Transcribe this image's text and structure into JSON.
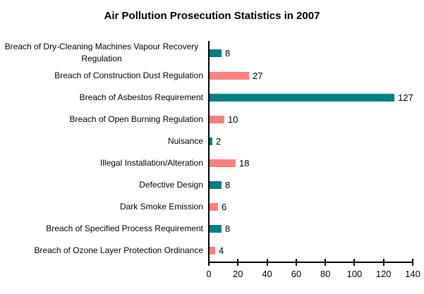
{
  "title": "Air Pollution Prosecution Statistics in 2007",
  "colors": {
    "series_teal": "#008080",
    "series_salmon": "#FF8080",
    "axis": "#000000",
    "background": "#FFFFFF",
    "text": "#000000"
  },
  "chart_data": {
    "type": "bar",
    "orientation": "horizontal",
    "title": "Air Pollution Prosecution Statistics in 2007",
    "categories": [
      "Breach of Dry-Cleaning Machines Vapour Recovery Regulation",
      "Breach of Construction Dust Regulation",
      "Breach of Asbestos Requirement",
      "Breach of Open Burning Regulation",
      "Nuisance",
      "Illegal Installation/Alteration",
      "Defective Design",
      "Dark Smoke Emission",
      "Breach of Specified Process Requirement",
      "Breach of Ozone Layer Protection Ordinance"
    ],
    "values": [
      8,
      27,
      127,
      10,
      2,
      18,
      8,
      6,
      8,
      4
    ],
    "value_labels": [
      "8",
      "27",
      "127",
      "10",
      "2",
      "18",
      "8",
      "6",
      "8",
      "4"
    ],
    "bar_colors_alternate": [
      "#008080",
      "#FF8080"
    ],
    "xlabel": "",
    "ylabel": "",
    "xlim": [
      0,
      140
    ],
    "xticks": [
      0,
      20,
      40,
      60,
      80,
      100,
      120,
      140
    ],
    "grid": "off",
    "legend": "none",
    "value_labels_shown": true
  }
}
